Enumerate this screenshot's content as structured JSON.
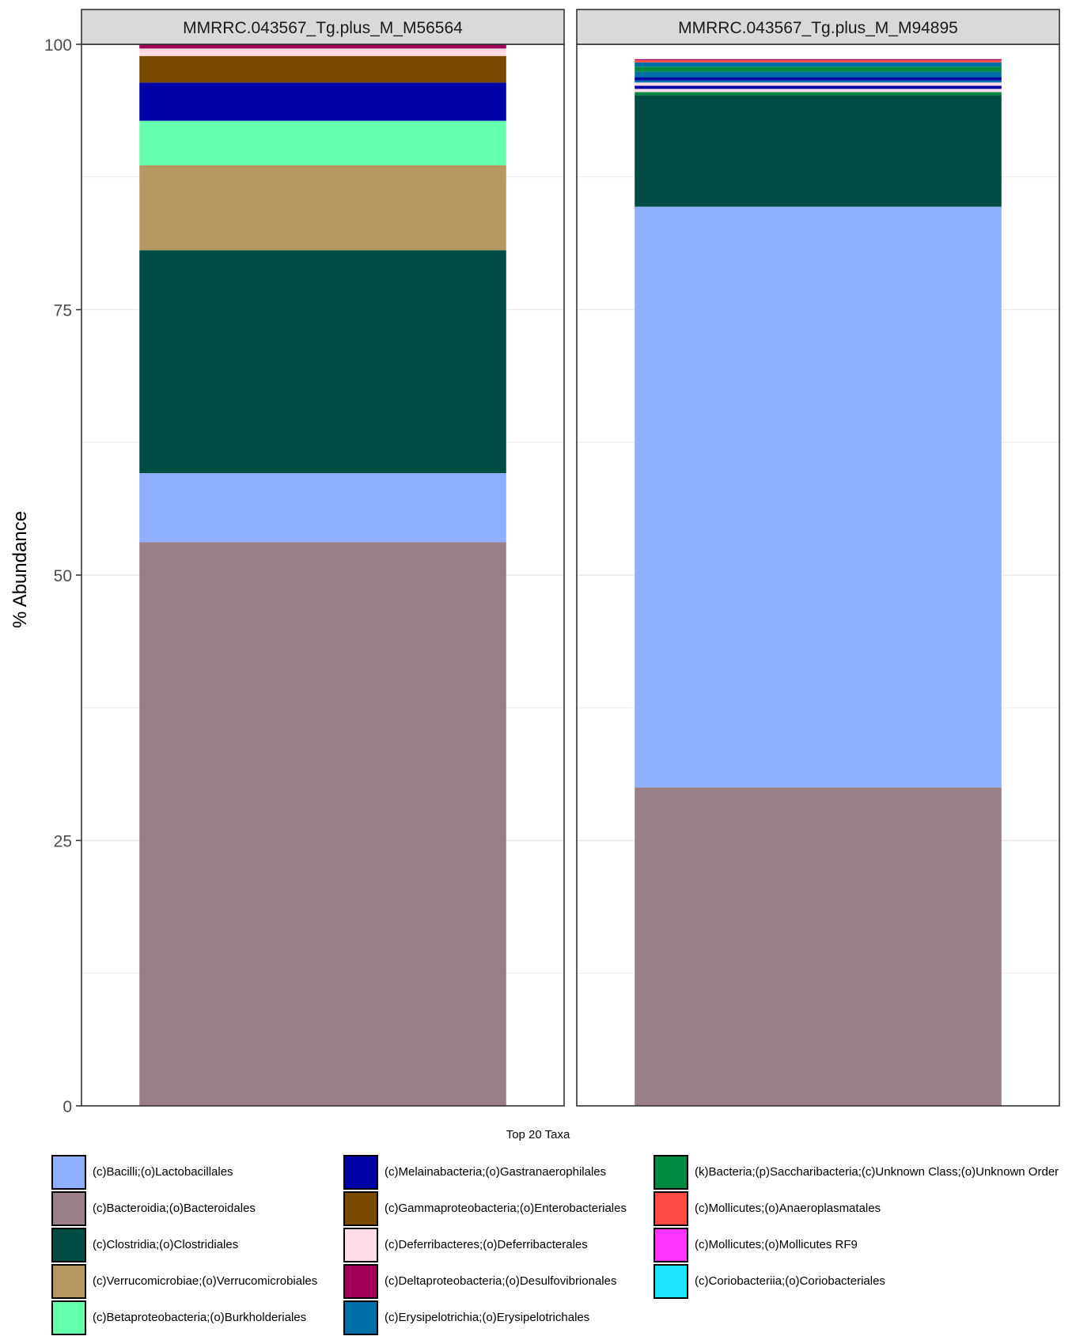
{
  "chart_data": {
    "type": "bar",
    "ylabel": "% Abundance",
    "ylim": [
      0,
      100
    ],
    "y_ticks": [
      "0",
      "25",
      "50",
      "75",
      "100"
    ],
    "grid": true,
    "legend_position": "bottom",
    "legend_title": "Top 20 Taxa",
    "panels": [
      {
        "strip_label": "MMRRC.043567_Tg.plus_M_M56564",
        "segments": [
          {
            "taxon": "(c)Bacteroidia;(o)Bacteroidales",
            "value": 53.1
          },
          {
            "taxon": "(c)Bacilli;(o)Lactobacillales",
            "value": 6.5
          },
          {
            "taxon": "(c)Clostridia;(o)Clostridiales",
            "value": 21.0
          },
          {
            "taxon": "(c)Verrucomicrobiae;(o)Verrucomicrobiales",
            "value": 8.0
          },
          {
            "taxon": "(c)Betaproteobacteria;(o)Burkholderiales",
            "value": 4.2
          },
          {
            "taxon": "(c)Melainabacteria;(o)Gastranaerophilales",
            "value": 3.6
          },
          {
            "taxon": "(c)Gammaproteobacteria;(o)Enterobacteriales",
            "value": 2.5
          },
          {
            "taxon": "(c)Deferribacteres;(o)Deferribacterales",
            "value": 0.7
          },
          {
            "taxon": "(c)Deltaproteobacteria;(o)Desulfovibrionales",
            "value": 0.4
          }
        ]
      },
      {
        "strip_label": "MMRRC.043567_Tg.plus_M_M94895",
        "segments": [
          {
            "taxon": "(c)Bacteroidia;(o)Bacteroidales",
            "value": 30.0
          },
          {
            "taxon": "(c)Bacilli;(o)Lactobacillales",
            "value": 54.7
          },
          {
            "taxon": "(c)Clostridia;(o)Clostridiales",
            "value": 10.5
          },
          {
            "taxon": "(k)Bacteria;(p)Saccharibacteria;(c)Unknown Class;(o)Unknown Order",
            "value": 0.3
          },
          {
            "taxon": "(c)Deferribacteres;(o)Deferribacterales",
            "value": 0.3
          },
          {
            "taxon": "(c)Melainabacteria;(o)Gastranaerophilales",
            "value": 0.3
          },
          {
            "taxon": "(c)Deferribacteres;(o)Deferribacterales",
            "value": 0.3
          },
          {
            "taxon": "(c)Erysipelotrichia;(o)Erysipelotrichales",
            "value": 0.2
          },
          {
            "taxon": "(c)Melainabacteria;(o)Gastranaerophilales",
            "value": 0.3
          },
          {
            "taxon": "(c)Erysipelotrichia;(o)Erysipelotrichales",
            "value": 0.5
          },
          {
            "taxon": "(k)Bacteria;(p)Saccharibacteria;(c)Unknown Class;(o)Unknown Order",
            "value": 0.5
          },
          {
            "taxon": "(c)Erysipelotrichia;(o)Erysipelotrichales",
            "value": 0.4
          },
          {
            "taxon": "(c)Mollicutes;(o)Anaeroplasmatales",
            "value": 0.2
          },
          {
            "taxon": "(c)Deltaproteobacteria;(o)Desulfovibrionales",
            "value": 0.1
          }
        ]
      }
    ],
    "legend": {
      "columns": [
        [
          {
            "label": "(c)Bacilli;(o)Lactobacillales",
            "color": "#8FB0FF"
          },
          {
            "label": "(c)Bacteroidia;(o)Bacteroidales",
            "color": "#9B7F86"
          },
          {
            "label": "(c)Clostridia;(o)Clostridiales",
            "color": "#004D43"
          },
          {
            "label": "(c)Verrucomicrobiae;(o)Verrucomicrobiales",
            "color": "#B79762"
          },
          {
            "label": "(c)Betaproteobacteria;(o)Burkholderiales",
            "color": "#63FFAC"
          }
        ],
        [
          {
            "label": "(c)Melainabacteria;(o)Gastranaerophilales",
            "color": "#0000A6"
          },
          {
            "label": "(c)Gammaproteobacteria;(o)Enterobacteriales",
            "color": "#7A4900"
          },
          {
            "label": "(c)Deferribacteres;(o)Deferribacterales",
            "color": "#FFDBE5"
          },
          {
            "label": "(c)Deltaproteobacteria;(o)Desulfovibrionales",
            "color": "#A30059"
          },
          {
            "label": "(c)Erysipelotrichia;(o)Erysipelotrichales",
            "color": "#006FA6"
          }
        ],
        [
          {
            "label": "(k)Bacteria;(p)Saccharibacteria;(c)Unknown Class;(o)Unknown Order",
            "color": "#008941"
          },
          {
            "label": "(c)Mollicutes;(o)Anaeroplasmatales",
            "color": "#FF4A46"
          },
          {
            "label": "(c)Mollicutes;(o)Mollicutes RF9",
            "color": "#FF34FF"
          },
          {
            "label": "(c)Coriobacteriia;(o)Coriobacteriales",
            "color": "#1CE6FF"
          }
        ]
      ]
    }
  }
}
